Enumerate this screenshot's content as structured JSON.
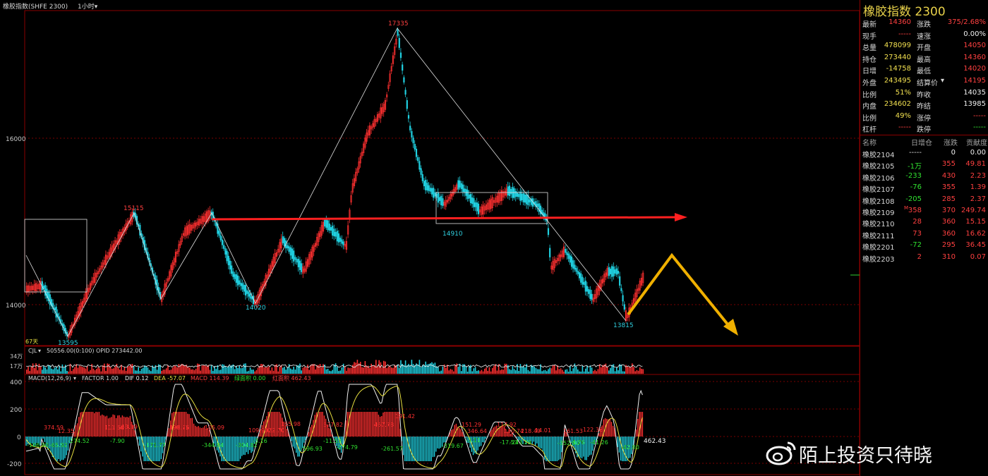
{
  "header": {
    "title": "橡胶指数(SHFE 2300)",
    "period": "1小时",
    "period_arrow": "chevron-down-icon"
  },
  "price_axis": {
    "labels": [
      "16000",
      "14000"
    ]
  },
  "price_annotations": {
    "peak": "17335",
    "left_high": "15115",
    "left_low": "13595",
    "mid_low": "14020",
    "neck_low": "14910",
    "right_low": "13815",
    "days_label": "67天"
  },
  "volume": {
    "header": "CJL",
    "header_arrow": "chevron-down-icon",
    "values_text": "50556.00(0:100)  OPID 273442.00",
    "axis_labels": [
      "34万",
      "17万"
    ]
  },
  "macd": {
    "header_name": "MACD(12,26,9)",
    "header_arrow": "chevron-down-icon",
    "factor": "FACTOR 1.00",
    "dif": "DIF 0.12",
    "dea": "DEA -57.07",
    "macd": "MACD 114.39",
    "green_area": "绿面积 0.00",
    "red_area": "红面积 462.43",
    "axis_labels": [
      "400",
      "200",
      "0",
      "-200"
    ],
    "red_annotations": [
      "374.59",
      "12.35",
      "111.66",
      "53.19",
      "198.76",
      "105.09",
      "109.90",
      "322.70",
      "165.98",
      "527.82",
      "467.78",
      "191.42",
      "151.29",
      "346.64",
      "117.92",
      "130.74",
      "218.49",
      "14.01",
      "161.53",
      "122.38"
    ],
    "green_annotations": [
      "-106.90",
      "-65.92",
      "-274.52",
      "-7.90",
      "-171.77",
      "-344.84",
      "-304.82",
      "-3.16",
      "-596.93",
      "-11.53",
      "-274.79",
      "-261.57",
      "-319.67",
      "-3.11",
      "-17.53",
      "-243.29",
      "-352.90",
      "-4.76",
      "-41.26",
      "-42.80"
    ],
    "last_value": "462.43"
  },
  "quote_panel": {
    "title": "橡胶指数 2300",
    "rows": [
      {
        "l1": "最新",
        "v1": "14360",
        "l2": "涨跌",
        "v2": "375/2.68%"
      },
      {
        "l1": "现手",
        "v1": "-----",
        "l2": "速涨",
        "v2": "0.00%"
      },
      {
        "l1": "总量",
        "v1": "478099",
        "l2": "开盘",
        "v2": "14050"
      },
      {
        "l1": "持仓",
        "v1": "273440",
        "l2": "最高",
        "v2": "14360"
      },
      {
        "l1": "日增",
        "v1": "-14758",
        "l2": "最低",
        "v2": "14020"
      },
      {
        "l1": "外盘",
        "v1": "243495",
        "l2": "结算价",
        "v2": "14195"
      },
      {
        "l1": "比例",
        "v1": "51%",
        "l2": "昨收",
        "v2": "14035"
      },
      {
        "l1": "内盘",
        "v1": "234602",
        "l2": "昨结",
        "v2": "13985"
      },
      {
        "l1": "比例",
        "v1": "49%",
        "l2": "涨停",
        "v2": "-----"
      },
      {
        "l1": "杠杆",
        "v1": "-----",
        "l2": "跌停",
        "v2": "-----"
      }
    ],
    "settle_arrow": "chevron-down-icon",
    "futures_header": [
      "名称",
      "日增仓",
      "涨跌",
      "贡献度"
    ],
    "futures": [
      {
        "name": "橡胶2104",
        "chg": "-----",
        "diff": "0",
        "contrib": "0.00"
      },
      {
        "name": "橡胶2105",
        "chg": "-1万",
        "diff": "355",
        "contrib": "49.81"
      },
      {
        "name": "橡胶2106",
        "chg": "-233",
        "diff": "430",
        "contrib": "2.23"
      },
      {
        "name": "橡胶2107",
        "chg": "-76",
        "diff": "355",
        "contrib": "1.39"
      },
      {
        "name": "橡胶2108",
        "chg": "-205",
        "diff": "285",
        "contrib": "2.37"
      },
      {
        "name": "橡胶2109",
        "mark": "M",
        "chg": "358",
        "diff": "370",
        "contrib": "249.74"
      },
      {
        "name": "橡胶2110",
        "chg": "28",
        "diff": "360",
        "contrib": "15.15"
      },
      {
        "name": "橡胶2111",
        "chg": "73",
        "diff": "360",
        "contrib": "16.62"
      },
      {
        "name": "橡胶2201",
        "chg": "-72",
        "diff": "295",
        "contrib": "36.45"
      },
      {
        "name": "橡胶2203",
        "chg": "2",
        "diff": "310",
        "contrib": "0.07"
      }
    ]
  },
  "watermark": {
    "text": "陌上投资只待晓",
    "icon": "weibo-logo-icon"
  },
  "colors": {
    "up": "#ff3030",
    "down": "#20d0e0",
    "frame": "#8a0000",
    "trend_line": "#ff2020",
    "forecast_arrow": "#f0b000"
  }
}
